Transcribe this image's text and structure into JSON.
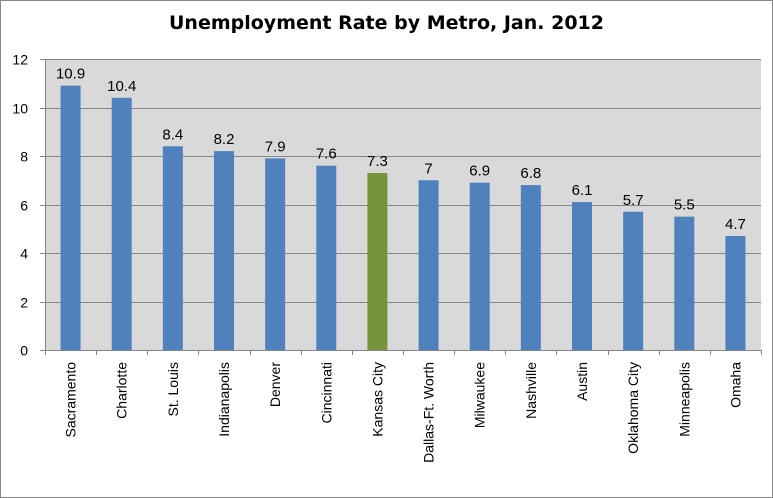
{
  "chart_data": {
    "type": "bar",
    "title": "Unemployment Rate by Metro, Jan. 2012",
    "xlabel": "",
    "ylabel": "",
    "categories": [
      "Sacramento",
      "Charlotte",
      "St. Louis",
      "Indianapolis",
      "Denver",
      "Cincinnati",
      "Kansas City",
      "Dallas-Ft. Worth",
      "Milwaukee",
      "Nashville",
      "Austin",
      "Oklahoma City",
      "Minneapolis",
      "Omaha"
    ],
    "values": [
      10.9,
      10.4,
      8.4,
      8.2,
      7.9,
      7.6,
      7.3,
      7,
      6.9,
      6.8,
      6.1,
      5.7,
      5.5,
      4.7
    ],
    "data_labels": [
      "10.9",
      "10.4",
      "8.4",
      "8.2",
      "7.9",
      "7.6",
      "7.3",
      "7",
      "6.9",
      "6.8",
      "6.1",
      "5.7",
      "5.5",
      "4.7"
    ],
    "y_ticks": [
      0,
      2,
      4,
      6,
      8,
      10,
      12
    ],
    "ylim": [
      0,
      12
    ],
    "grid": true,
    "legend": "none",
    "colors": {
      "bar": "#4F81BD",
      "highlight_bar": "#77933C",
      "plot_background": "#D9D9D9",
      "gridline": "#868686"
    },
    "highlight_category": "Kansas City"
  }
}
